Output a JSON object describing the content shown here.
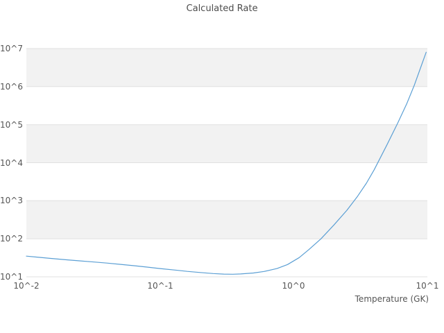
{
  "chart_data": {
    "type": "line",
    "title": "Calculated Rate",
    "xlabel": "Temperature (GK)",
    "ylabel": "",
    "xscale": "log",
    "yscale": "log",
    "xlim": [
      0.01,
      10
    ],
    "ylim": [
      10,
      10000000
    ],
    "grid": true,
    "legend": "none",
    "xticks": [
      {
        "label": "10^-2",
        "value": 0.01
      },
      {
        "label": "10^-1",
        "value": 0.1
      },
      {
        "label": "10^0",
        "value": 1
      },
      {
        "label": "10^1",
        "value": 10
      }
    ],
    "yticks": [
      {
        "label": "10^1",
        "value": 10
      },
      {
        "label": "10^2",
        "value": 100
      },
      {
        "label": "10^3",
        "value": 1000
      },
      {
        "label": "10^4",
        "value": 10000
      },
      {
        "label": "10^5",
        "value": 100000
      },
      {
        "label": "10^6",
        "value": 1000000
      },
      {
        "label": "10^7",
        "value": 10000000
      }
    ],
    "series": [
      {
        "name": "Calculated Rate",
        "color": "#5b9fd4",
        "x": [
          0.01,
          0.012,
          0.015,
          0.02,
          0.025,
          0.03,
          0.04,
          0.05,
          0.065,
          0.08,
          0.1,
          0.13,
          0.16,
          0.2,
          0.25,
          0.3,
          0.35,
          0.4,
          0.5,
          0.6,
          0.75,
          0.9,
          1.1,
          1.3,
          1.6,
          2.0,
          2.5,
          3.0,
          3.5,
          4.0,
          5.0,
          6.0,
          7.0,
          8.0,
          9.0,
          9.8
        ],
        "y": [
          35,
          33,
          30.5,
          28,
          26.3,
          25,
          23,
          21.3,
          19.5,
          18,
          16.5,
          15,
          13.9,
          13,
          12.2,
          11.8,
          11.7,
          11.9,
          12.6,
          13.8,
          16.5,
          21,
          32,
          52,
          100,
          230,
          560,
          1300,
          2900,
          6500,
          30000,
          110000,
          350000,
          1100000,
          3500000,
          8000000
        ]
      }
    ],
    "plot": {
      "background_color": "#ffffff",
      "band_color": "#f2f2f2",
      "grid_color": "#e0e0e0",
      "shaded_bands": [
        [
          100,
          1000
        ],
        [
          10000,
          100000
        ],
        [
          1000000,
          10000000
        ]
      ]
    }
  }
}
